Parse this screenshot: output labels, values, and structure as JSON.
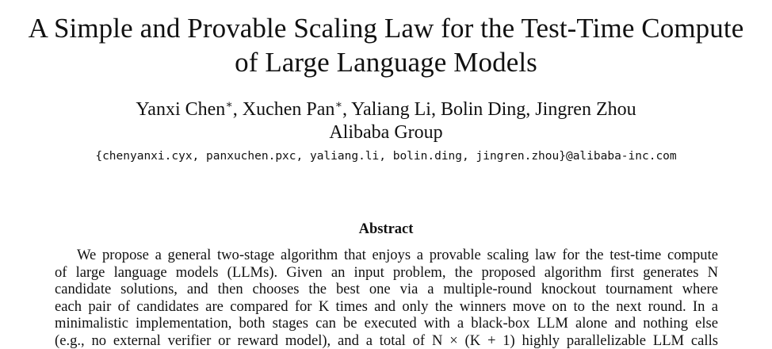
{
  "paper": {
    "title_line1": "A Simple and Provable Scaling Law for the Test-Time Compute",
    "title_line2": "of Large Language Models",
    "authors": {
      "author1": "Yanxi Chen",
      "author1_mark": "∗",
      "separator1": ", ",
      "author2": "Xuchen Pan",
      "author2_mark": "∗",
      "rest": ", Yaliang Li, Bolin Ding, Jingren Zhou"
    },
    "affiliation": "Alibaba Group",
    "emails": "{chenyanxi.cyx, panxuchen.pxc, yaliang.li, bolin.ding, jingren.zhou}@alibaba-inc.com",
    "abstract_heading": "Abstract",
    "abstract_lines": [
      "We propose a general two-stage algorithm that enjoys a provable scaling law for the test-time compute",
      "of large language models (LLMs). Given an input problem, the proposed algorithm first generates N",
      "candidate solutions, and then chooses the best one via a multiple-round knockout tournament where",
      "each pair of candidates are compared for K times and only the winners move on to the next round. In a",
      "minimalistic implementation, both stages can be executed with a black-box LLM alone and nothing else",
      "(e.g., no external verifier or reward model), and a total of N × (K + 1) highly parallelizable LLM calls"
    ]
  }
}
